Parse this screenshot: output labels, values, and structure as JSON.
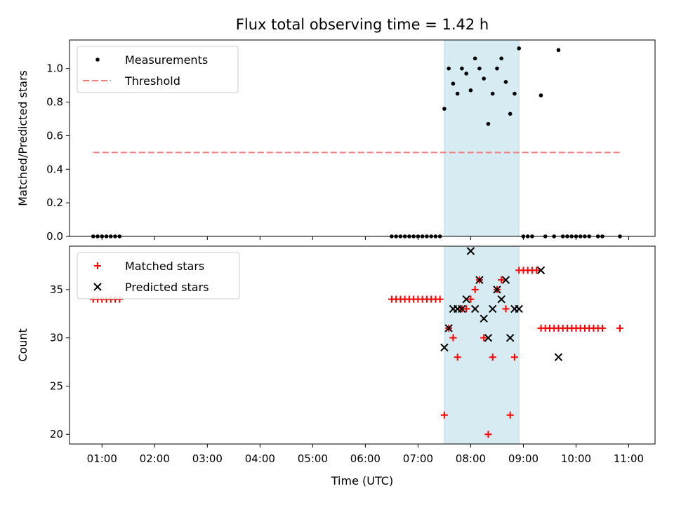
{
  "chart_data": {
    "title": "Flux total observing time = 1.42 h",
    "xlabel": "Time (UTC)",
    "x_ticks": [
      "01:00",
      "02:00",
      "03:00",
      "04:00",
      "05:00",
      "06:00",
      "07:00",
      "08:00",
      "09:00",
      "10:00",
      "11:00"
    ],
    "x_range": [
      "00:23",
      "11:30"
    ],
    "shaded_interval": [
      "07:30",
      "08:55"
    ],
    "colors": {
      "measurements": "#000000",
      "threshold": "#f08080",
      "matched": "#ff0000",
      "predicted": "#000000",
      "shade": "#add8e6"
    },
    "panels": [
      {
        "type": "scatter",
        "ylabel": "Matched/Predicted stars",
        "ylim": [
          0,
          1.17
        ],
        "y_ticks": [
          "0.0",
          "0.2",
          "0.4",
          "0.6",
          "0.8",
          "1.0"
        ],
        "legend_position": "top-left",
        "series": [
          {
            "name": "Measurements",
            "kind": "points",
            "points": [
              [
                "00:50",
                0
              ],
              [
                "00:55",
                0
              ],
              [
                "01:00",
                0
              ],
              [
                "01:05",
                0
              ],
              [
                "01:10",
                0
              ],
              [
                "01:15",
                0
              ],
              [
                "01:20",
                0
              ],
              [
                "06:30",
                0
              ],
              [
                "06:35",
                0
              ],
              [
                "06:40",
                0
              ],
              [
                "06:45",
                0
              ],
              [
                "06:50",
                0
              ],
              [
                "06:55",
                0
              ],
              [
                "07:00",
                0
              ],
              [
                "07:05",
                0
              ],
              [
                "07:10",
                0
              ],
              [
                "07:15",
                0
              ],
              [
                "07:20",
                0
              ],
              [
                "07:25",
                0
              ],
              [
                "07:30",
                0.76
              ],
              [
                "07:35",
                1.0
              ],
              [
                "07:40",
                0.91
              ],
              [
                "07:45",
                0.85
              ],
              [
                "07:50",
                1.0
              ],
              [
                "07:55",
                0.97
              ],
              [
                "08:00",
                0.87
              ],
              [
                "08:05",
                1.06
              ],
              [
                "08:10",
                1.0
              ],
              [
                "08:15",
                0.94
              ],
              [
                "08:20",
                0.67
              ],
              [
                "08:25",
                0.85
              ],
              [
                "08:30",
                1.0
              ],
              [
                "08:35",
                1.06
              ],
              [
                "08:40",
                0.92
              ],
              [
                "08:45",
                0.73
              ],
              [
                "08:50",
                0.85
              ],
              [
                "08:55",
                1.12
              ],
              [
                "09:00",
                0
              ],
              [
                "09:05",
                0
              ],
              [
                "09:10",
                0
              ],
              [
                "09:20",
                0.84
              ],
              [
                "09:25",
                0
              ],
              [
                "09:35",
                0
              ],
              [
                "09:40",
                1.11
              ],
              [
                "09:45",
                0
              ],
              [
                "09:50",
                0
              ],
              [
                "09:55",
                0
              ],
              [
                "10:00",
                0
              ],
              [
                "10:05",
                0
              ],
              [
                "10:10",
                0
              ],
              [
                "10:15",
                0
              ],
              [
                "10:25",
                0
              ],
              [
                "10:30",
                0
              ],
              [
                "10:50",
                0
              ]
            ]
          },
          {
            "name": "Threshold",
            "kind": "dashed-line",
            "points": [
              [
                "00:50",
                0.5
              ],
              [
                "10:50",
                0.5
              ]
            ]
          }
        ]
      },
      {
        "type": "scatter",
        "ylabel": "Count",
        "ylim": [
          19,
          39.5
        ],
        "y_ticks": [
          "20",
          "25",
          "30",
          "35"
        ],
        "legend_position": "top-left",
        "series": [
          {
            "name": "Matched stars",
            "marker": "plus",
            "points": [
              [
                "00:50",
                34
              ],
              [
                "00:55",
                34
              ],
              [
                "01:00",
                34
              ],
              [
                "01:05",
                34
              ],
              [
                "01:10",
                34
              ],
              [
                "01:15",
                34
              ],
              [
                "01:20",
                34
              ],
              [
                "06:30",
                34
              ],
              [
                "06:35",
                34
              ],
              [
                "06:40",
                34
              ],
              [
                "06:45",
                34
              ],
              [
                "06:50",
                34
              ],
              [
                "06:55",
                34
              ],
              [
                "07:00",
                34
              ],
              [
                "07:05",
                34
              ],
              [
                "07:10",
                34
              ],
              [
                "07:15",
                34
              ],
              [
                "07:20",
                34
              ],
              [
                "07:25",
                34
              ],
              [
                "07:30",
                22
              ],
              [
                "07:35",
                31
              ],
              [
                "07:40",
                30
              ],
              [
                "07:45",
                28
              ],
              [
                "07:50",
                33
              ],
              [
                "07:55",
                33
              ],
              [
                "08:00",
                34
              ],
              [
                "08:05",
                35
              ],
              [
                "08:10",
                36
              ],
              [
                "08:15",
                30
              ],
              [
                "08:20",
                20
              ],
              [
                "08:25",
                28
              ],
              [
                "08:30",
                35
              ],
              [
                "08:35",
                36
              ],
              [
                "08:40",
                33
              ],
              [
                "08:45",
                22
              ],
              [
                "08:50",
                28
              ],
              [
                "08:55",
                37
              ],
              [
                "09:00",
                37
              ],
              [
                "09:05",
                37
              ],
              [
                "09:10",
                37
              ],
              [
                "09:15",
                37
              ],
              [
                "09:20",
                31
              ],
              [
                "09:25",
                31
              ],
              [
                "09:30",
                31
              ],
              [
                "09:35",
                31
              ],
              [
                "09:40",
                31
              ],
              [
                "09:45",
                31
              ],
              [
                "09:50",
                31
              ],
              [
                "09:55",
                31
              ],
              [
                "10:00",
                31
              ],
              [
                "10:05",
                31
              ],
              [
                "10:10",
                31
              ],
              [
                "10:15",
                31
              ],
              [
                "10:20",
                31
              ],
              [
                "10:25",
                31
              ],
              [
                "10:30",
                31
              ],
              [
                "10:50",
                31
              ]
            ]
          },
          {
            "name": "Predicted stars",
            "marker": "x",
            "points": [
              [
                "07:30",
                29
              ],
              [
                "07:35",
                31
              ],
              [
                "07:40",
                33
              ],
              [
                "07:45",
                33
              ],
              [
                "07:50",
                33
              ],
              [
                "07:55",
                34
              ],
              [
                "08:00",
                39
              ],
              [
                "08:05",
                33
              ],
              [
                "08:10",
                36
              ],
              [
                "08:15",
                32
              ],
              [
                "08:20",
                30
              ],
              [
                "08:25",
                33
              ],
              [
                "08:30",
                35
              ],
              [
                "08:35",
                34
              ],
              [
                "08:40",
                36
              ],
              [
                "08:45",
                30
              ],
              [
                "08:50",
                33
              ],
              [
                "08:55",
                33
              ],
              [
                "09:20",
                37
              ],
              [
                "09:40",
                28
              ]
            ]
          }
        ]
      }
    ]
  }
}
